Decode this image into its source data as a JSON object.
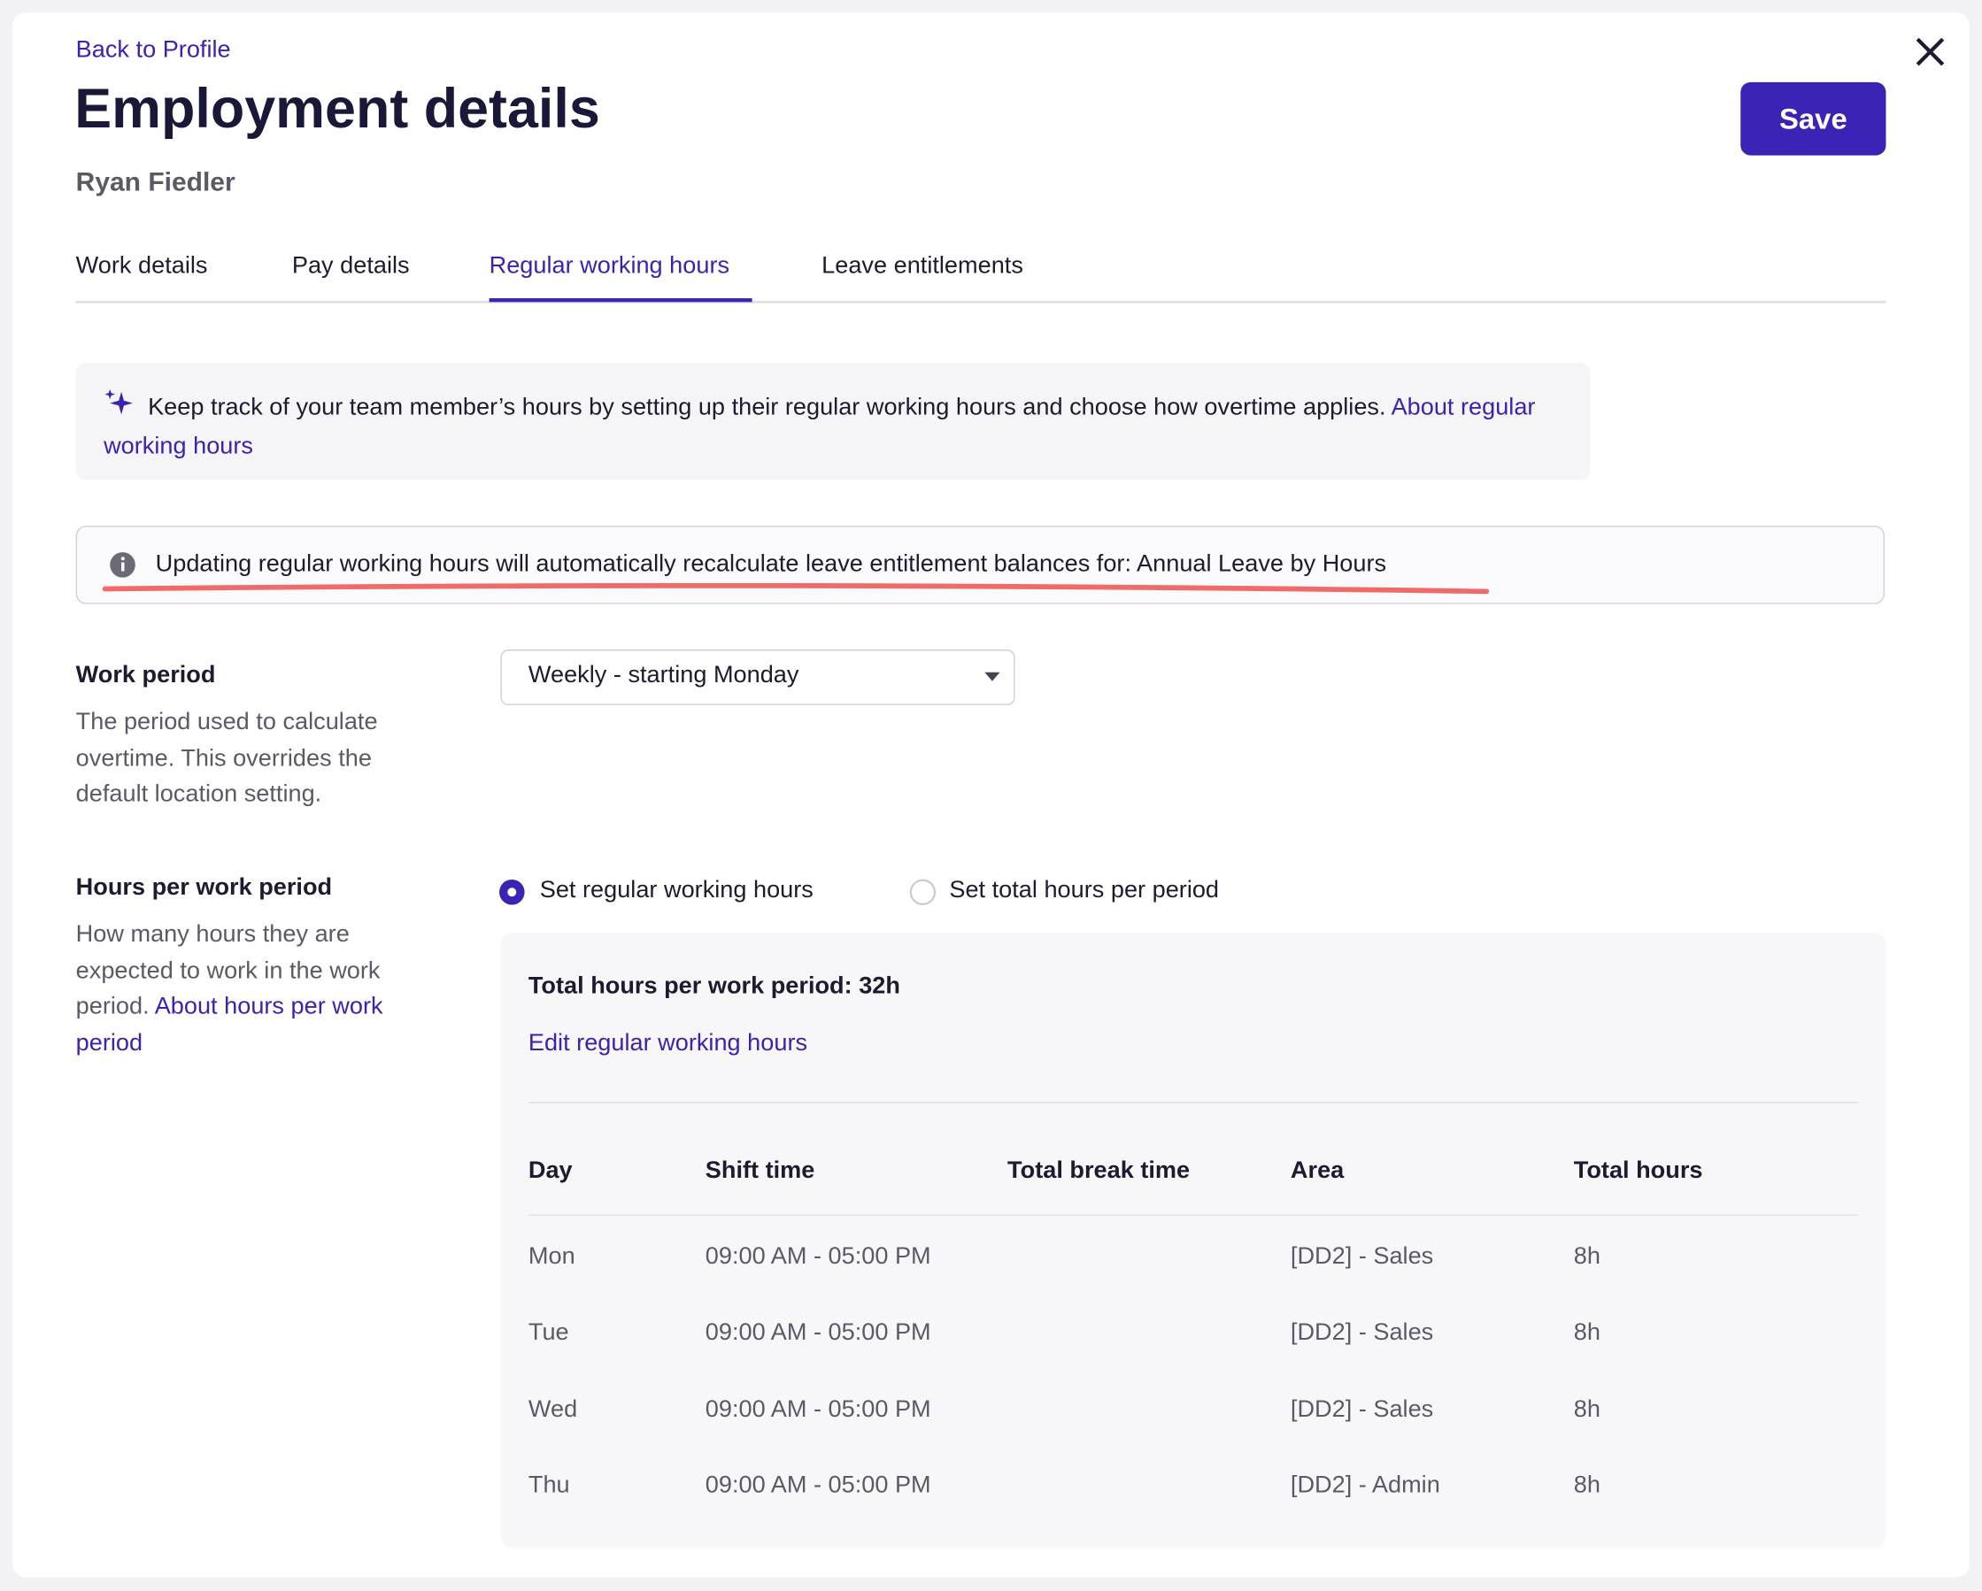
{
  "header": {
    "back_link": "Back to Profile",
    "title": "Employment details",
    "subtitle": "Ryan Fiedler",
    "save": "Save"
  },
  "tabs": {
    "items": [
      "Work details",
      "Pay details",
      "Regular working hours",
      "Leave entitlements"
    ],
    "active": 2
  },
  "banner": {
    "text": "Keep track of your team member’s hours by setting up their regular working hours and choose how overtime applies.",
    "link": "About regular working hours"
  },
  "notice": {
    "text": "Updating regular working hours will automatically recalculate leave entitlement balances for: Annual Leave by Hours"
  },
  "work_period": {
    "label": "Work period",
    "description": "The period used to calculate overtime. This overrides the default location setting.",
    "select": "Weekly - starting Monday"
  },
  "hours": {
    "label": "Hours per work period",
    "description": "How many hours they are expected to work in the work period.",
    "description_link": "About hours per work period",
    "options": [
      "Set regular working hours",
      "Set total hours per period"
    ],
    "selected": 0,
    "total": "Total hours per work period: 32h",
    "edit_link": "Edit regular working hours",
    "table": {
      "headers": [
        "Day",
        "Shift time",
        "Total break time",
        "Area",
        "Total hours"
      ],
      "rows": [
        {
          "day": "Mon",
          "shift": "09:00 AM - 05:00 PM",
          "area": "[DD2] - Sales",
          "hours": "8h"
        },
        {
          "day": "Tue",
          "shift": "09:00 AM - 05:00 PM",
          "area": "[DD2] - Sales",
          "hours": "8h"
        },
        {
          "day": "Wed",
          "shift": "09:00 AM - 05:00 PM",
          "area": "[DD2] - Sales",
          "hours": "8h"
        },
        {
          "day": "Thu",
          "shift": "09:00 AM - 05:00 PM",
          "area": "[DD2] - Admin",
          "hours": "8h"
        }
      ]
    }
  }
}
